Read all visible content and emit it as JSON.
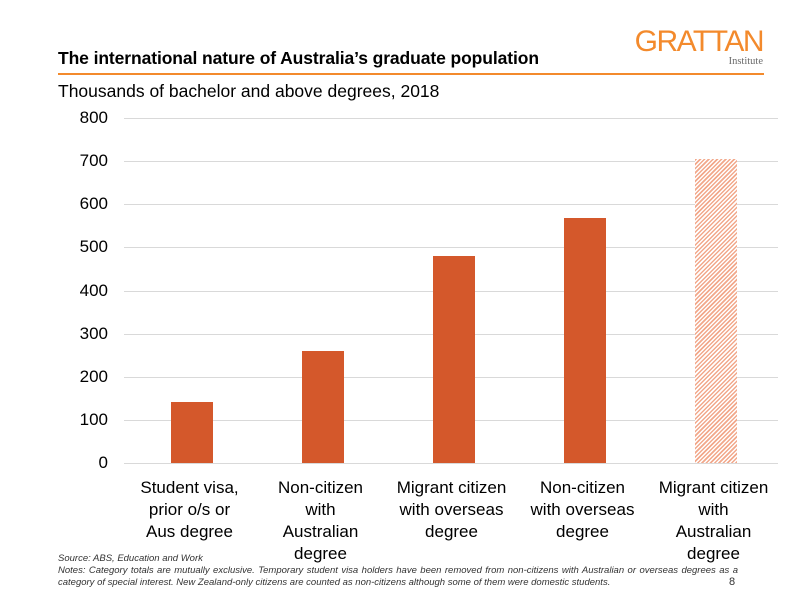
{
  "header": {
    "title": "The international nature of Australia’s graduate population",
    "logo_main": "GRATTAN",
    "logo_sub": "Institute",
    "subtitle": "Thousands of bachelor and above degrees, 2018"
  },
  "chart_data": {
    "type": "bar",
    "title": "The international nature of Australia’s graduate population",
    "subtitle": "Thousands of bachelor and above degrees, 2018",
    "xlabel": "",
    "ylabel": "Thousands of bachelor and above degrees",
    "ylim": [
      0,
      800
    ],
    "yticks": [
      0,
      100,
      200,
      300,
      400,
      500,
      600,
      700,
      800
    ],
    "grid": true,
    "legend": null,
    "categories": [
      "Student visa, prior o/s or Aus degree",
      "Non-citizen with Australian degree",
      "Migrant citizen with overseas degree",
      "Non-citizen with overseas degree",
      "Migrant citizen with Australian degree"
    ],
    "values": [
      141,
      260,
      480,
      568,
      705
    ],
    "bar_styles": [
      "solid",
      "solid",
      "solid",
      "solid",
      "hatched"
    ],
    "colors": {
      "bar": "#d4582b",
      "hatch": "#f2a88b",
      "grid": "#d9d9d9",
      "accent": "#f38a2c"
    }
  },
  "xlabels": [
    "Student visa,\nprior o/s or\nAus degree",
    "Non-citizen\nwith\nAustralian\ndegree",
    "Migrant citizen\nwith overseas\ndegree",
    "Non-citizen\nwith overseas\ndegree",
    "Migrant citizen\nwith\nAustralian\ndegree"
  ],
  "footer": {
    "source": "Source: ABS, Education and Work",
    "notes": "Notes: Category totals are mutually exclusive. Temporary student visa holders have been removed from non-citizens with Australian or overseas degrees as a category of special interest. New Zealand-only citizens are counted as non-citizens although some of them were domestic students.",
    "page_number": "8"
  }
}
